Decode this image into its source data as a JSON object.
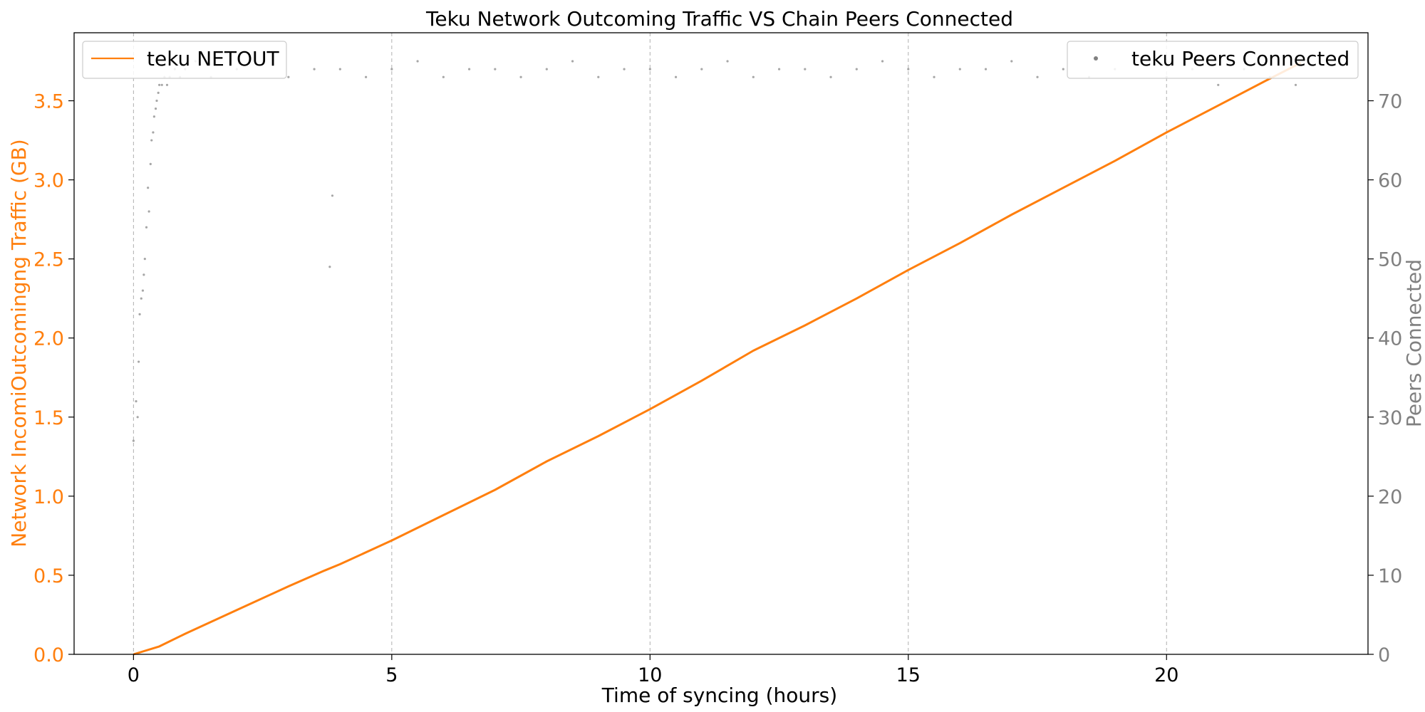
{
  "chart_data": {
    "type": "line+scatter",
    "title": "Teku Network Outcoming Traffic VS Chain Peers Connected",
    "xlabel": "Time of syncing (hours)",
    "ylabel_left": "Network IncomiOutcomingng Traffic (GB)",
    "ylabel_right": "Peers Connected",
    "xlim": [
      -1.15,
      23.9
    ],
    "ylim_left": [
      0,
      3.93
    ],
    "ylim_right": [
      0,
      78.6
    ],
    "x_ticks": [
      0,
      5,
      10,
      15,
      20
    ],
    "x_tick_labels": [
      "0",
      "5",
      "10",
      "15",
      "20"
    ],
    "y_left_ticks": [
      0.0,
      0.5,
      1.0,
      1.5,
      2.0,
      2.5,
      3.0,
      3.5
    ],
    "y_left_tick_labels": [
      "0.0",
      "0.5",
      "1.0",
      "1.5",
      "2.0",
      "2.5",
      "3.0",
      "3.5"
    ],
    "y_right_ticks": [
      0,
      10,
      20,
      30,
      40,
      50,
      60,
      70
    ],
    "y_right_tick_labels": [
      "0",
      "10",
      "20",
      "30",
      "40",
      "50",
      "60",
      "70"
    ],
    "grid": "vertical-dashed",
    "series": [
      {
        "name": "teku NETOUT",
        "kind": "line",
        "axis": "left",
        "color": "#ff7f0e",
        "x": [
          0,
          0.5,
          1,
          2,
          3,
          3.7,
          4,
          5,
          6,
          7,
          8,
          9,
          10,
          11,
          12,
          13,
          14,
          15,
          16,
          17,
          18,
          19,
          20,
          21,
          22,
          22.6
        ],
        "y": [
          0,
          0.05,
          0.13,
          0.28,
          0.43,
          0.53,
          0.57,
          0.72,
          0.88,
          1.04,
          1.22,
          1.38,
          1.55,
          1.73,
          1.92,
          2.08,
          2.25,
          2.43,
          2.6,
          2.78,
          2.95,
          3.12,
          3.3,
          3.47,
          3.64,
          3.74
        ]
      },
      {
        "name": "teku Peers Connected",
        "kind": "scatter",
        "axis": "right",
        "color": "#808080",
        "x": [
          0,
          0.05,
          0.08,
          0.1,
          0.12,
          0.15,
          0.18,
          0.2,
          0.22,
          0.25,
          0.28,
          0.3,
          0.33,
          0.35,
          0.38,
          0.4,
          0.43,
          0.45,
          0.48,
          0.5,
          0.55,
          0.6,
          0.65,
          0.7,
          0.8,
          0.9,
          1.0,
          1.2,
          1.5,
          2.0,
          2.5,
          3.0,
          3.5,
          3.8,
          3.85,
          4.0,
          4.5,
          5.0,
          5.5,
          6.0,
          6.5,
          7.0,
          7.5,
          8.0,
          8.5,
          9.0,
          9.5,
          10.0,
          10.5,
          11.0,
          11.5,
          12.0,
          12.5,
          13.0,
          13.5,
          14.0,
          14.5,
          15.0,
          15.5,
          16.0,
          16.5,
          17.0,
          17.5,
          18.0,
          18.5,
          19.0,
          19.5,
          20.0,
          20.5,
          21.0,
          21.5,
          22.0,
          22.5
        ],
        "y": [
          27,
          32,
          30,
          37,
          43,
          45,
          46,
          48,
          50,
          54,
          59,
          56,
          62,
          65,
          66,
          68,
          69,
          70,
          71,
          72,
          72,
          73,
          72,
          73,
          74,
          73,
          74,
          75,
          73,
          74,
          75,
          73,
          74,
          49,
          58,
          74,
          73,
          74,
          75,
          73,
          74,
          74,
          73,
          74,
          75,
          73,
          74,
          74,
          73,
          74,
          75,
          73,
          74,
          74,
          73,
          74,
          75,
          74,
          73,
          74,
          74,
          75,
          73,
          74,
          73,
          74,
          75,
          73,
          74,
          72,
          74,
          73,
          72
        ]
      }
    ],
    "legend_left": "upper-left",
    "legend_right": "upper-right"
  }
}
